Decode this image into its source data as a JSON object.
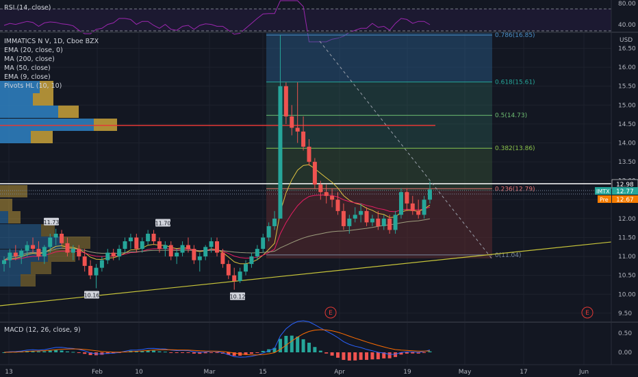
{
  "symbol": "IMMATICS N V, 1D, Cboe BZX",
  "indicators": [
    "EMA (20, close, 0)",
    "MA (200, close)",
    "MA (50, close)",
    "EMA (9, close)",
    "Pivots HL (10, 10)"
  ],
  "rsi_label": "RSI (14, close)",
  "macd_label": "MACD (12, 26, close, 9)",
  "currency": "USD",
  "colors": {
    "bg": "#131722",
    "up": "#26a69a",
    "down": "#ef5350",
    "yellow": "#c9c63a",
    "fib_red": "#b73c3c",
    "fib_green": "#2f5d4a",
    "fib_blue": "#2b5f8f"
  },
  "chart_data": {
    "type": "candlestick",
    "ylim": [
      9.5,
      17.0
    ],
    "price_ticks": [
      "16.50",
      "16.00",
      "15.50",
      "15.00",
      "14.50",
      "14.00",
      "13.50",
      "13.00",
      "12.50",
      "12.00",
      "11.50",
      "11.00",
      "10.50",
      "10.00",
      "9.50"
    ],
    "x_labels": [
      "13",
      "Feb",
      "10",
      "Mar",
      "15",
      "Apr",
      "19",
      "May",
      "17",
      "Jun"
    ],
    "rsi_ticks": [
      "80.00",
      "40.00"
    ],
    "macd_ticks": [
      "0.50",
      "0.00"
    ],
    "fib_levels": [
      {
        "label": "0.786(16.85)",
        "value": 16.85
      },
      {
        "label": "0.618(15.61)",
        "value": 15.61
      },
      {
        "label": "0.5(14.73)",
        "value": 14.73
      },
      {
        "label": "0.382(13.86)",
        "value": 13.86
      },
      {
        "label": "0.236(12.79)",
        "value": 12.79
      },
      {
        "label": "0(11.04)",
        "value": 11.04
      }
    ],
    "pivots": [
      {
        "label": "11.73",
        "value": 11.73
      },
      {
        "label": "11.70",
        "value": 11.7
      },
      {
        "label": "10.16",
        "value": 10.16
      },
      {
        "label": "10.12",
        "value": 10.12
      }
    ],
    "price_labels": [
      {
        "text": "12.98",
        "kind": "last-line"
      },
      {
        "text": "IMTX",
        "kind": "ticker"
      },
      {
        "text": "12.77",
        "kind": "current"
      },
      {
        "text": "Pre",
        "kind": "pre-tag"
      },
      {
        "text": "12.67",
        "kind": "pre"
      }
    ],
    "events": [
      "E",
      "E"
    ],
    "candles": [
      [
        10.8,
        11.0,
        10.6,
        10.9
      ],
      [
        10.9,
        11.2,
        10.7,
        11.1
      ],
      [
        11.1,
        11.3,
        10.9,
        11.0
      ],
      [
        11.0,
        11.2,
        10.8,
        11.15
      ],
      [
        11.15,
        11.4,
        11.0,
        11.3
      ],
      [
        11.3,
        11.5,
        11.1,
        11.2
      ],
      [
        11.2,
        11.4,
        10.9,
        11.0
      ],
      [
        11.0,
        11.3,
        10.8,
        11.25
      ],
      [
        11.25,
        11.6,
        11.1,
        11.5
      ],
      [
        11.5,
        11.73,
        11.3,
        11.6
      ],
      [
        11.6,
        11.7,
        11.3,
        11.35
      ],
      [
        11.35,
        11.5,
        11.0,
        11.1
      ],
      [
        11.1,
        11.3,
        10.9,
        11.2
      ],
      [
        11.2,
        11.3,
        10.9,
        11.0
      ],
      [
        11.0,
        11.2,
        10.6,
        10.75
      ],
      [
        10.75,
        10.9,
        10.4,
        10.5
      ],
      [
        10.5,
        10.8,
        10.16,
        10.7
      ],
      [
        10.7,
        11.0,
        10.6,
        10.9
      ],
      [
        10.9,
        11.2,
        10.8,
        11.1
      ],
      [
        11.1,
        11.2,
        10.9,
        11.0
      ],
      [
        11.0,
        11.3,
        10.9,
        11.2
      ],
      [
        11.2,
        11.5,
        11.1,
        11.4
      ],
      [
        11.4,
        11.6,
        11.2,
        11.5
      ],
      [
        11.5,
        11.6,
        11.1,
        11.2
      ],
      [
        11.2,
        11.5,
        11.1,
        11.4
      ],
      [
        11.4,
        11.7,
        11.3,
        11.6
      ],
      [
        11.6,
        11.7,
        11.3,
        11.4
      ],
      [
        11.4,
        11.5,
        11.1,
        11.2
      ],
      [
        11.2,
        11.4,
        11.0,
        11.3
      ],
      [
        11.3,
        11.4,
        10.9,
        11.0
      ],
      [
        11.0,
        11.2,
        10.8,
        11.1
      ],
      [
        11.1,
        11.4,
        11.0,
        11.3
      ],
      [
        11.3,
        11.5,
        11.1,
        11.2
      ],
      [
        11.2,
        11.3,
        10.8,
        10.9
      ],
      [
        10.9,
        11.1,
        10.6,
        11.0
      ],
      [
        11.0,
        11.3,
        10.9,
        11.25
      ],
      [
        11.25,
        11.5,
        11.1,
        11.4
      ],
      [
        11.4,
        11.5,
        11.0,
        11.1
      ],
      [
        11.1,
        11.2,
        10.7,
        10.8
      ],
      [
        10.8,
        10.9,
        10.4,
        10.5
      ],
      [
        10.5,
        10.7,
        10.12,
        10.35
      ],
      [
        10.35,
        10.7,
        10.3,
        10.6
      ],
      [
        10.6,
        10.9,
        10.5,
        10.8
      ],
      [
        10.8,
        11.1,
        10.7,
        11.0
      ],
      [
        11.0,
        11.3,
        10.9,
        11.2
      ],
      [
        11.2,
        11.6,
        11.1,
        11.5
      ],
      [
        11.5,
        11.9,
        11.4,
        11.8
      ],
      [
        11.8,
        12.2,
        11.7,
        12.0
      ],
      [
        12.0,
        16.85,
        12.0,
        15.5
      ],
      [
        15.5,
        15.6,
        14.5,
        14.7
      ],
      [
        14.7,
        15.0,
        14.2,
        14.4
      ],
      [
        14.4,
        15.6,
        14.0,
        14.3
      ],
      [
        14.3,
        14.7,
        13.8,
        13.9
      ],
      [
        13.9,
        14.1,
        13.4,
        13.5
      ],
      [
        13.5,
        13.6,
        12.8,
        12.9
      ],
      [
        12.9,
        13.0,
        12.5,
        12.7
      ],
      [
        12.7,
        12.9,
        12.4,
        12.6
      ],
      [
        12.6,
        12.8,
        12.3,
        12.5
      ],
      [
        12.5,
        12.7,
        12.1,
        12.2
      ],
      [
        12.2,
        12.4,
        11.7,
        11.8
      ],
      [
        11.8,
        12.1,
        11.6,
        12.0
      ],
      [
        12.0,
        12.3,
        11.9,
        12.1
      ],
      [
        12.1,
        12.4,
        11.9,
        12.2
      ],
      [
        12.2,
        12.3,
        11.8,
        11.9
      ],
      [
        11.9,
        12.1,
        11.8,
        12.0
      ],
      [
        12.0,
        12.2,
        11.7,
        11.8
      ],
      [
        11.8,
        12.1,
        11.7,
        12.0
      ],
      [
        12.0,
        12.1,
        11.6,
        11.7
      ],
      [
        11.7,
        12.2,
        11.6,
        12.1
      ],
      [
        12.1,
        12.8,
        12.0,
        12.7
      ],
      [
        12.7,
        12.8,
        12.2,
        12.4
      ],
      [
        12.4,
        12.6,
        12.1,
        12.2
      ],
      [
        12.2,
        12.5,
        12.0,
        12.1
      ],
      [
        12.1,
        12.6,
        12.0,
        12.5
      ],
      [
        12.5,
        12.98,
        12.4,
        12.77
      ]
    ]
  }
}
